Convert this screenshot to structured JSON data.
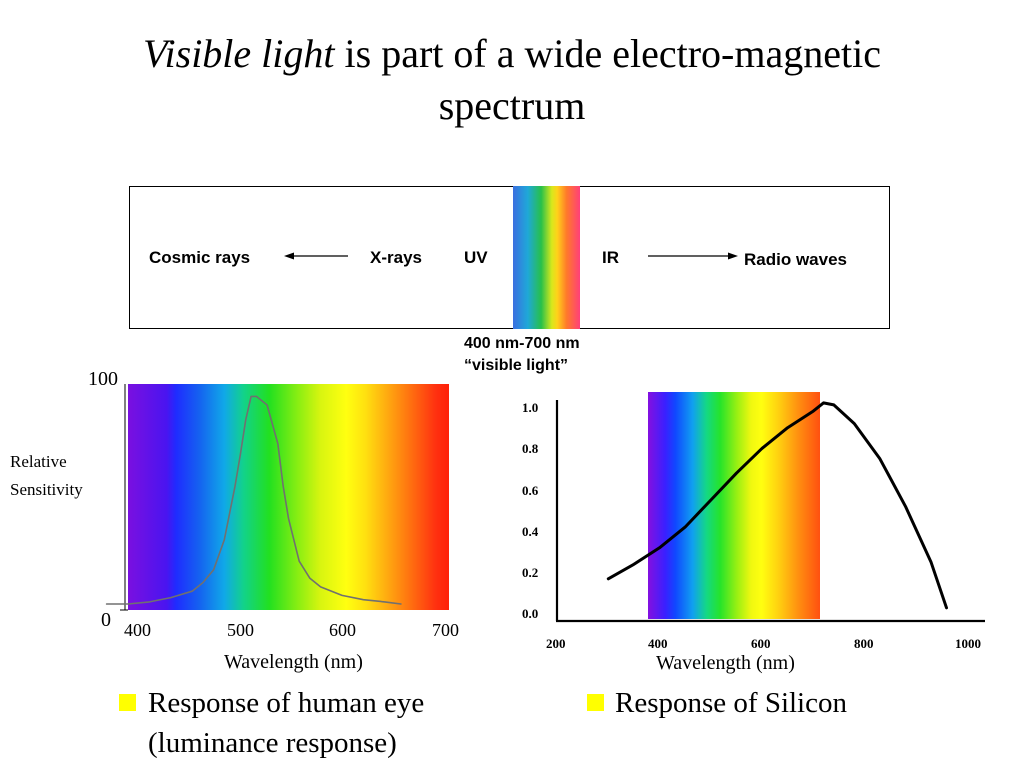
{
  "title": {
    "italic": "Visible light",
    "rest": " is part of a wide electro-magnetic",
    "line2": "spectrum"
  },
  "spectrum": {
    "cosmic": "Cosmic rays",
    "xrays": "X-rays",
    "uv": "UV",
    "ir": "IR",
    "radio": "Radio waves",
    "range": "400 nm-700 nm",
    "visible": "“visible light”"
  },
  "eye_chart": {
    "ylabel_line1": "Relative",
    "ylabel_line2": "Sensitivity",
    "ytick_top": "100",
    "ytick_bottom": "0",
    "xticks": [
      "400",
      "500",
      "600",
      "700"
    ],
    "xlabel": "Wavelength (nm)"
  },
  "si_chart": {
    "yticks": [
      "1.0",
      "0.8",
      "0.6",
      "0.4",
      "0.2",
      "0.0"
    ],
    "xticks": [
      "200",
      "400",
      "600",
      "800",
      "1000"
    ],
    "xlabel": "Wavelength (nm)"
  },
  "captions": {
    "eye_line1": "Response of human eye",
    "eye_line2": "(luminance response)",
    "silicon": "Response of Silicon"
  },
  "chart_data": [
    {
      "type": "line",
      "title": "",
      "xlabel": "Wavelength (nm)",
      "ylabel": "Relative Sensitivity",
      "xlim": [
        400,
        700
      ],
      "ylim": [
        0,
        100
      ],
      "series": [
        {
          "x": [
            380,
            400,
            420,
            440,
            460,
            470,
            480,
            490,
            500,
            505,
            510,
            515,
            520,
            530,
            540,
            545,
            550,
            560,
            570,
            580,
            600,
            620,
            640,
            655
          ],
          "y": [
            0,
            0,
            1,
            3,
            6,
            10,
            16,
            30,
            55,
            70,
            86,
            97,
            97,
            93,
            75,
            55,
            40,
            20,
            12,
            8,
            4,
            2,
            1,
            0
          ]
        }
      ]
    },
    {
      "type": "line",
      "title": "",
      "xlabel": "Wavelength (nm)",
      "ylabel": "",
      "xlim": [
        200,
        1000
      ],
      "ylim": [
        0,
        1.0
      ],
      "series": [
        {
          "x": [
            300,
            350,
            400,
            450,
            500,
            550,
            600,
            650,
            700,
            720,
            740,
            780,
            830,
            880,
            930,
            960
          ],
          "y": [
            0.17,
            0.24,
            0.32,
            0.42,
            0.55,
            0.68,
            0.8,
            0.9,
            0.98,
            1.02,
            1.01,
            0.92,
            0.75,
            0.52,
            0.25,
            0.03
          ]
        }
      ]
    }
  ]
}
